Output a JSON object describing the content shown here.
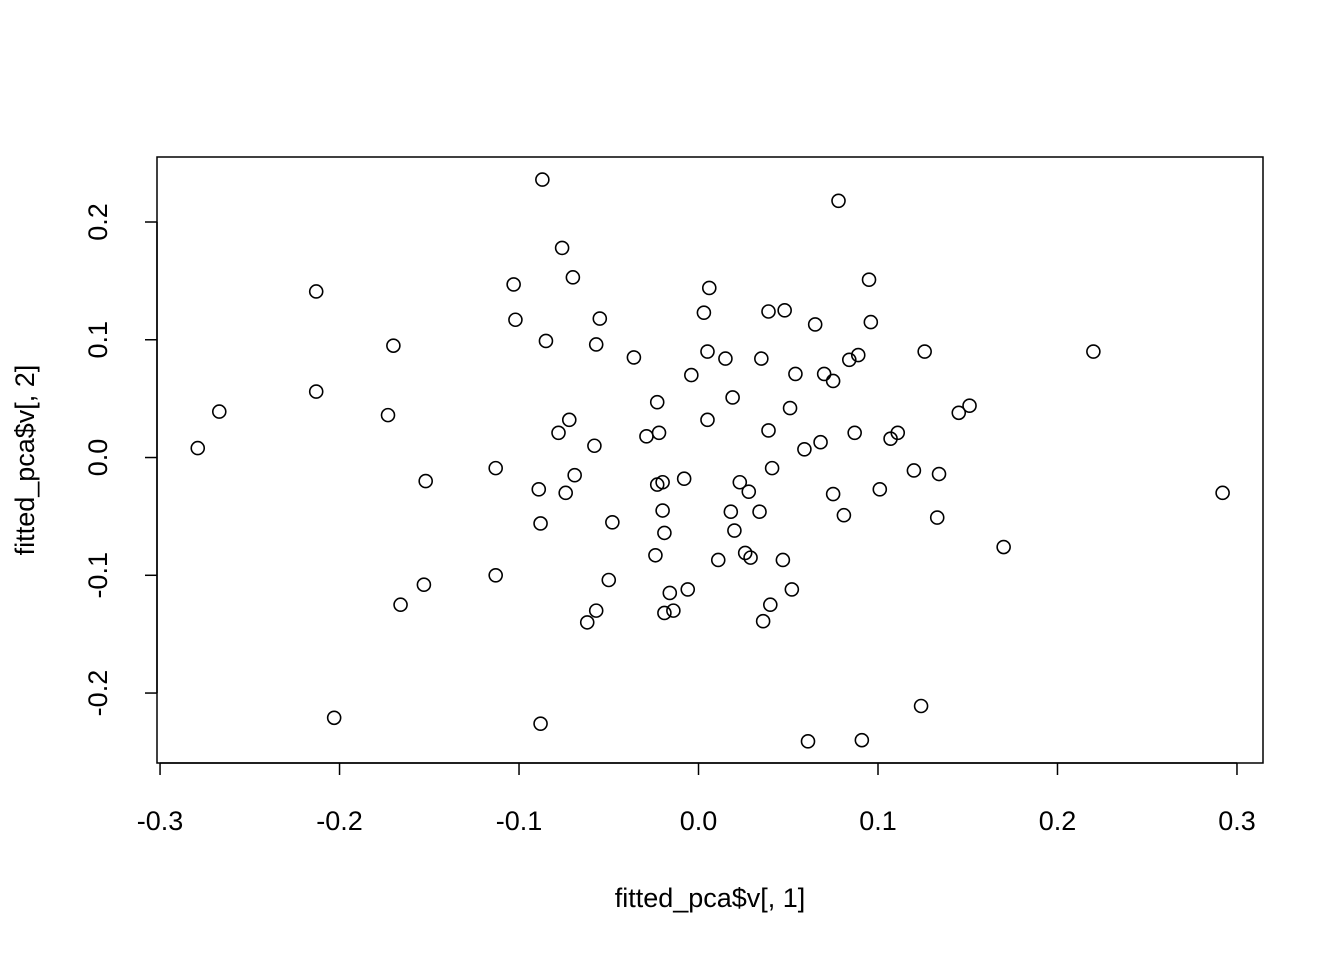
{
  "chart_data": {
    "type": "scatter",
    "x_label": "fitted_pca$v[, 1]",
    "y_label": "fitted_pca$v[, 2]",
    "color": "#000000",
    "xlim": [
      -0.3017,
      0.3145
    ],
    "ylim": [
      -0.2594,
      0.2552
    ],
    "xticks": [
      -0.3,
      -0.2,
      -0.1,
      {
        "value": 0,
        "label": "0.0"
      },
      0.1,
      0.2,
      0.3
    ],
    "yticks": [
      -0.2,
      -0.1,
      {
        "value": 0,
        "label": "0.0"
      },
      0.1,
      0.2
    ],
    "x": [
      -0.279,
      -0.267,
      -0.213,
      -0.213,
      -0.17,
      -0.173,
      -0.203,
      -0.166,
      -0.153,
      -0.152,
      -0.113,
      -0.113,
      -0.103,
      -0.102,
      -0.087,
      -0.085,
      -0.076,
      -0.07,
      -0.055,
      -0.057,
      -0.072,
      -0.078,
      -0.058,
      -0.089,
      -0.074,
      -0.069,
      -0.088,
      -0.048,
      -0.05,
      -0.057,
      -0.062,
      -0.088,
      -0.036,
      -0.029,
      -0.023,
      -0.022,
      -0.02,
      -0.023,
      -0.02,
      -0.019,
      -0.024,
      -0.019,
      -0.016,
      -0.014,
      -0.006,
      -0.008,
      -0.004,
      0.005,
      0.003,
      0.006,
      0.005,
      0.015,
      0.019,
      0.023,
      0.018,
      0.028,
      0.02,
      0.011,
      0.026,
      0.029,
      0.034,
      0.036,
      0.04,
      0.047,
      0.052,
      0.035,
      0.039,
      0.048,
      0.039,
      0.041,
      0.051,
      0.054,
      0.059,
      0.065,
      0.068,
      0.07,
      0.075,
      0.078,
      0.084,
      0.089,
      0.075,
      0.081,
      0.087,
      0.095,
      0.096,
      0.061,
      0.091,
      0.101,
      0.107,
      0.111,
      0.12,
      0.126,
      0.124,
      0.133,
      0.134,
      0.145,
      0.151,
      0.17,
      0.22,
      0.292
    ],
    "values": [
      0.008,
      0.039,
      0.141,
      0.056,
      0.095,
      0.036,
      -0.221,
      -0.125,
      -0.108,
      -0.02,
      -0.009,
      -0.1,
      0.147,
      0.117,
      0.236,
      0.099,
      0.178,
      0.153,
      0.118,
      0.096,
      0.032,
      0.021,
      0.01,
      -0.027,
      -0.03,
      -0.015,
      -0.056,
      -0.055,
      -0.104,
      -0.13,
      -0.14,
      -0.226,
      0.085,
      0.018,
      0.047,
      0.021,
      -0.021,
      -0.023,
      -0.045,
      -0.064,
      -0.083,
      -0.132,
      -0.115,
      -0.13,
      -0.112,
      -0.018,
      0.07,
      0.032,
      0.123,
      0.144,
      0.09,
      0.084,
      0.051,
      -0.021,
      -0.046,
      -0.029,
      -0.062,
      -0.087,
      -0.081,
      -0.085,
      -0.046,
      -0.139,
      -0.125,
      -0.087,
      -0.112,
      0.084,
      0.124,
      0.125,
      0.023,
      -0.009,
      0.042,
      0.071,
      0.007,
      0.113,
      0.013,
      0.071,
      0.065,
      0.218,
      0.083,
      0.087,
      -0.031,
      -0.049,
      0.021,
      0.151,
      0.115,
      -0.241,
      -0.24,
      -0.027,
      0.016,
      0.021,
      -0.011,
      0.09,
      -0.211,
      -0.051,
      -0.014,
      0.038,
      0.044,
      -0.076,
      0.09,
      -0.03
    ]
  }
}
